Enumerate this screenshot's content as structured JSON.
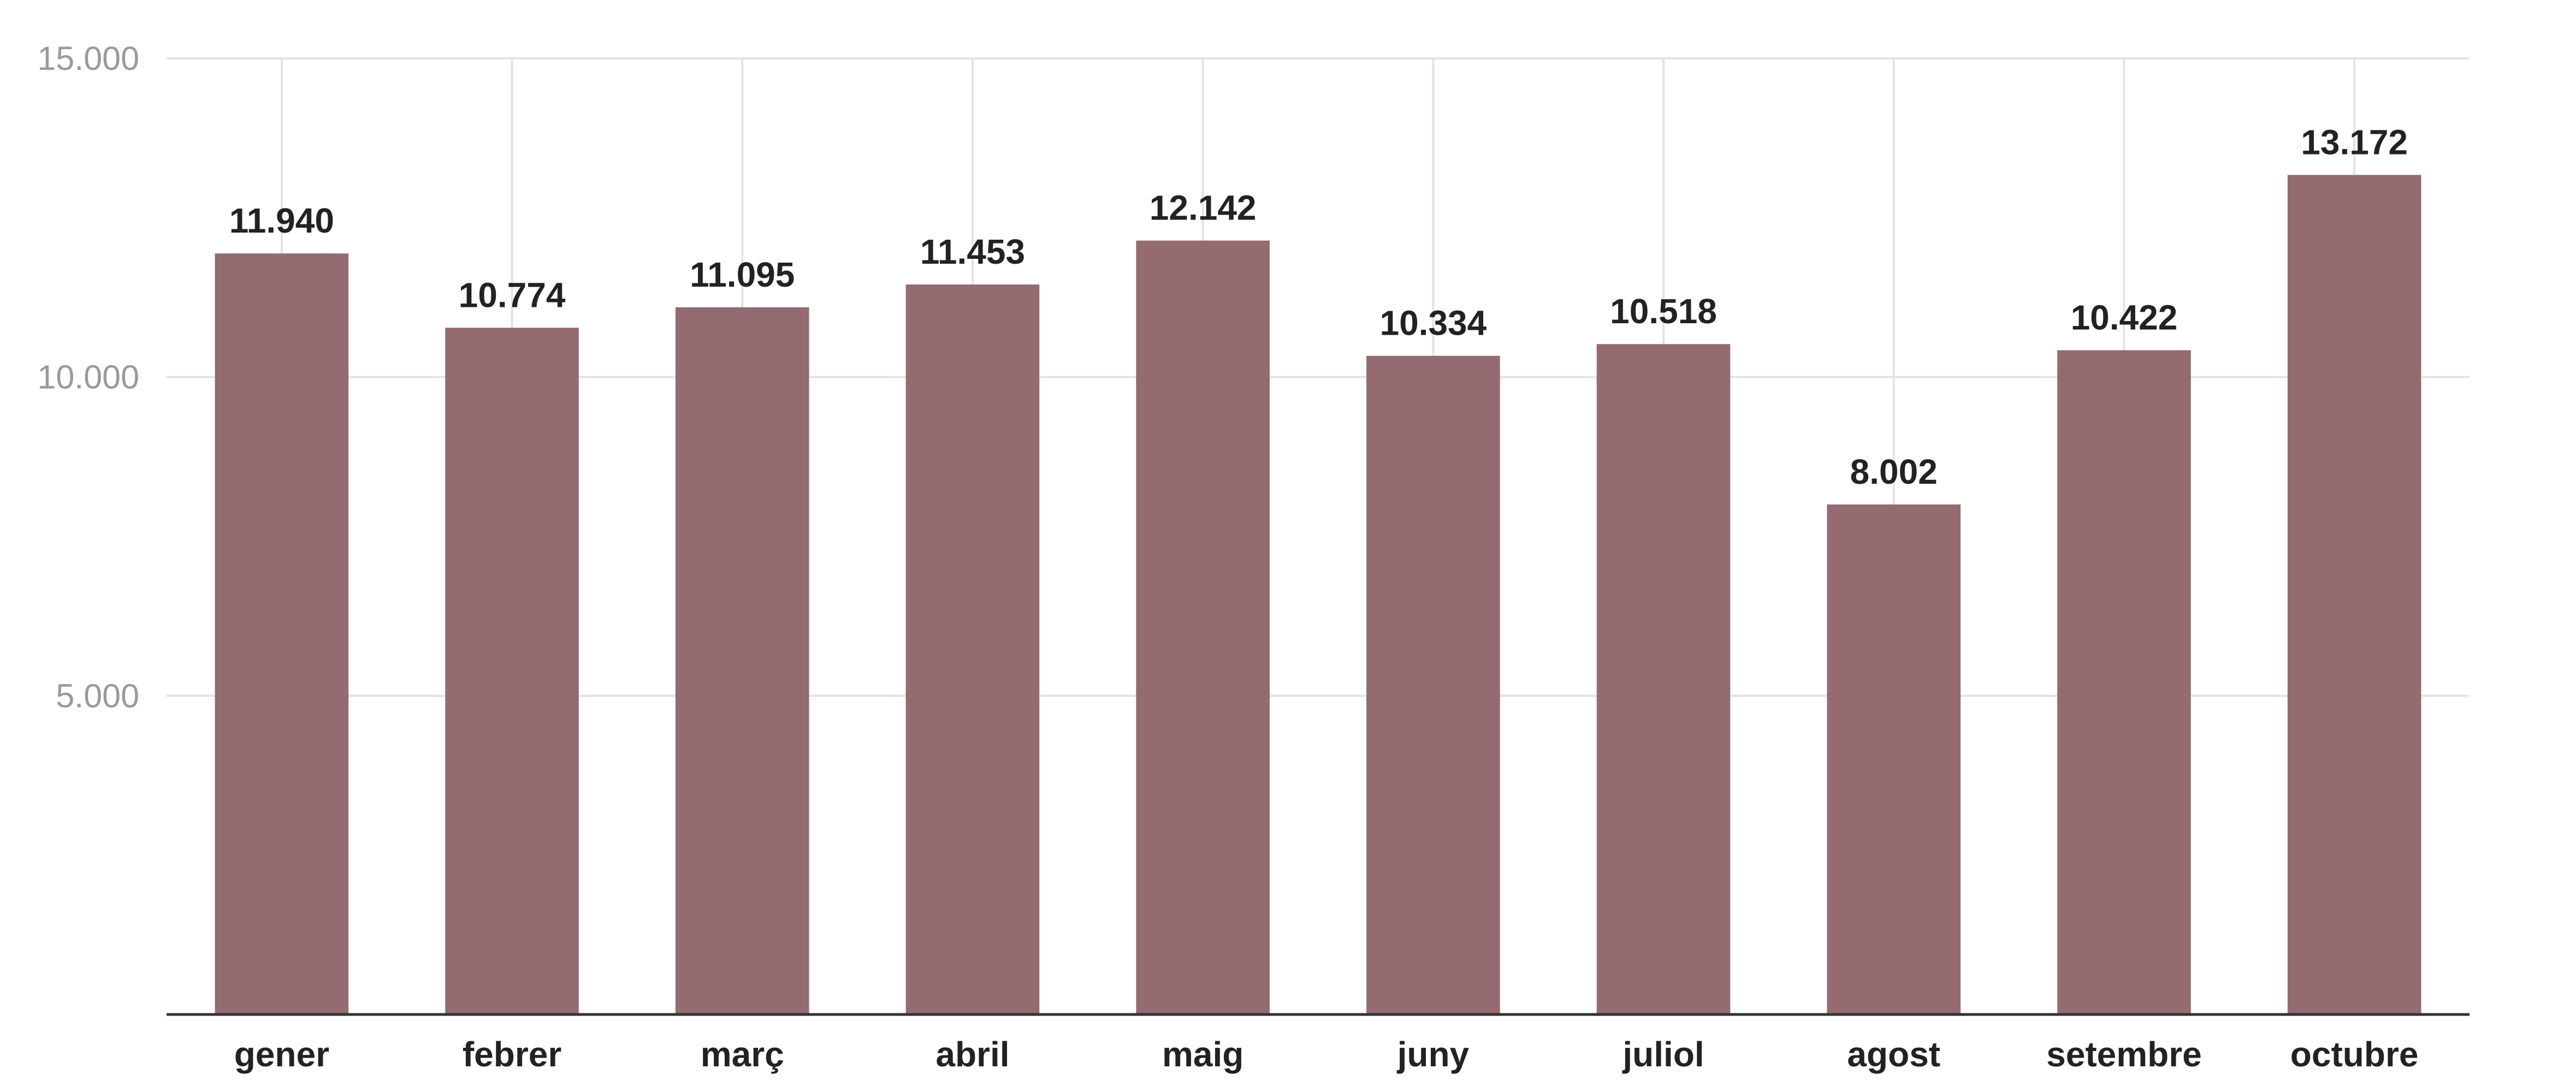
{
  "chart_data": {
    "type": "bar",
    "categories": [
      "gener",
      "febrer",
      "març",
      "abril",
      "maig",
      "juny",
      "juliol",
      "agost",
      "setembre",
      "octubre"
    ],
    "values": [
      11940,
      10774,
      11095,
      11453,
      12142,
      10334,
      10518,
      8002,
      10422,
      13172
    ],
    "value_labels": [
      "11.940",
      "10.774",
      "11.095",
      "11.453",
      "12.142",
      "10.334",
      "10.518",
      "8.002",
      "10.422",
      "13.172"
    ],
    "ylim": [
      0,
      15000
    ],
    "yticks": [
      5000,
      10000,
      15000
    ],
    "ytick_labels": [
      "5.000",
      "10.000",
      "15.000"
    ],
    "title": "",
    "xlabel": "",
    "ylabel": "",
    "grid": true,
    "legend": "none",
    "bar_color": "#936b71"
  }
}
